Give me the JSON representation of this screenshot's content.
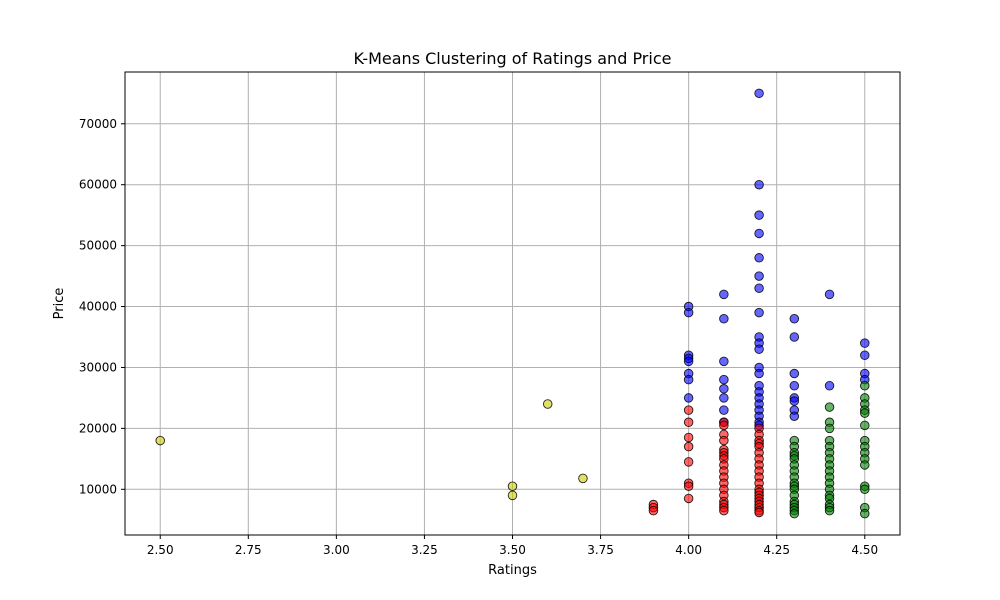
{
  "chart_data": {
    "type": "scatter",
    "title": "K-Means Clustering of Ratings and Price",
    "xlabel": "Ratings",
    "ylabel": "Price",
    "xlim": [
      2.4,
      4.6
    ],
    "ylim": [
      2500,
      78500
    ],
    "xticks": [
      "2.50",
      "2.75",
      "3.00",
      "3.25",
      "3.50",
      "3.75",
      "4.00",
      "4.25",
      "4.50"
    ],
    "xtick_values": [
      2.5,
      2.75,
      3.0,
      3.25,
      3.5,
      3.75,
      4.0,
      4.25,
      4.5
    ],
    "yticks": [
      "10000",
      "20000",
      "30000",
      "40000",
      "50000",
      "60000",
      "70000"
    ],
    "ytick_values": [
      10000,
      20000,
      30000,
      40000,
      50000,
      60000,
      70000
    ],
    "grid": true,
    "series": [
      {
        "color": "#0000ff",
        "points": [
          [
            4.0,
            40000
          ],
          [
            4.0,
            39000
          ],
          [
            4.0,
            32000
          ],
          [
            4.0,
            31500
          ],
          [
            4.0,
            31000
          ],
          [
            4.0,
            29000
          ],
          [
            4.0,
            28000
          ],
          [
            4.0,
            25000
          ],
          [
            4.1,
            42000
          ],
          [
            4.1,
            38000
          ],
          [
            4.1,
            31000
          ],
          [
            4.1,
            28000
          ],
          [
            4.1,
            26500
          ],
          [
            4.1,
            25000
          ],
          [
            4.1,
            23000
          ],
          [
            4.1,
            21000
          ],
          [
            4.2,
            75000
          ],
          [
            4.2,
            60000
          ],
          [
            4.2,
            55000
          ],
          [
            4.2,
            52000
          ],
          [
            4.2,
            48000
          ],
          [
            4.2,
            45000
          ],
          [
            4.2,
            43000
          ],
          [
            4.2,
            39000
          ],
          [
            4.2,
            35000
          ],
          [
            4.2,
            34000
          ],
          [
            4.2,
            33000
          ],
          [
            4.2,
            30000
          ],
          [
            4.2,
            29000
          ],
          [
            4.2,
            27000
          ],
          [
            4.2,
            26000
          ],
          [
            4.2,
            25000
          ],
          [
            4.2,
            24000
          ],
          [
            4.2,
            23000
          ],
          [
            4.2,
            22000
          ],
          [
            4.2,
            21000
          ],
          [
            4.2,
            20500
          ],
          [
            4.3,
            38000
          ],
          [
            4.3,
            35000
          ],
          [
            4.3,
            29000
          ],
          [
            4.3,
            27000
          ],
          [
            4.3,
            25000
          ],
          [
            4.3,
            24500
          ],
          [
            4.3,
            23000
          ],
          [
            4.3,
            22000
          ],
          [
            4.4,
            42000
          ],
          [
            4.4,
            27000
          ],
          [
            4.5,
            34000
          ],
          [
            4.5,
            32000
          ],
          [
            4.5,
            29000
          ],
          [
            4.5,
            28000
          ]
        ]
      },
      {
        "color": "#ff0000",
        "points": [
          [
            3.9,
            7500
          ],
          [
            3.9,
            7000
          ],
          [
            3.9,
            6500
          ],
          [
            4.0,
            23000
          ],
          [
            4.0,
            21000
          ],
          [
            4.0,
            18500
          ],
          [
            4.0,
            17000
          ],
          [
            4.0,
            14500
          ],
          [
            4.0,
            11000
          ],
          [
            4.0,
            10500
          ],
          [
            4.0,
            8500
          ],
          [
            4.1,
            21000
          ],
          [
            4.1,
            20500
          ],
          [
            4.1,
            19000
          ],
          [
            4.1,
            18000
          ],
          [
            4.1,
            16500
          ],
          [
            4.1,
            16000
          ],
          [
            4.1,
            15500
          ],
          [
            4.1,
            15000
          ],
          [
            4.1,
            14000
          ],
          [
            4.1,
            13000
          ],
          [
            4.1,
            12000
          ],
          [
            4.1,
            11000
          ],
          [
            4.1,
            10000
          ],
          [
            4.1,
            9000
          ],
          [
            4.1,
            8000
          ],
          [
            4.1,
            7500
          ],
          [
            4.1,
            7000
          ],
          [
            4.1,
            6500
          ],
          [
            4.2,
            20000
          ],
          [
            4.2,
            19000
          ],
          [
            4.2,
            18000
          ],
          [
            4.2,
            17500
          ],
          [
            4.2,
            17000
          ],
          [
            4.2,
            16000
          ],
          [
            4.2,
            15000
          ],
          [
            4.2,
            14000
          ],
          [
            4.2,
            13000
          ],
          [
            4.2,
            12000
          ],
          [
            4.2,
            11000
          ],
          [
            4.2,
            10000
          ],
          [
            4.2,
            9500
          ],
          [
            4.2,
            9000
          ],
          [
            4.2,
            8500
          ],
          [
            4.2,
            8000
          ],
          [
            4.2,
            7500
          ],
          [
            4.2,
            7000
          ],
          [
            4.2,
            6500
          ],
          [
            4.2,
            6200
          ]
        ]
      },
      {
        "color": "#008000",
        "points": [
          [
            4.3,
            18000
          ],
          [
            4.3,
            17000
          ],
          [
            4.3,
            16000
          ],
          [
            4.3,
            15500
          ],
          [
            4.3,
            15000
          ],
          [
            4.3,
            14000
          ],
          [
            4.3,
            13000
          ],
          [
            4.3,
            12000
          ],
          [
            4.3,
            11000
          ],
          [
            4.3,
            10500
          ],
          [
            4.3,
            10000
          ],
          [
            4.3,
            9000
          ],
          [
            4.3,
            8000
          ],
          [
            4.3,
            7500
          ],
          [
            4.3,
            7000
          ],
          [
            4.3,
            6500
          ],
          [
            4.3,
            6000
          ],
          [
            4.4,
            23500
          ],
          [
            4.4,
            21000
          ],
          [
            4.4,
            20000
          ],
          [
            4.4,
            18000
          ],
          [
            4.4,
            17000
          ],
          [
            4.4,
            16000
          ],
          [
            4.4,
            15000
          ],
          [
            4.4,
            14000
          ],
          [
            4.4,
            13000
          ],
          [
            4.4,
            12000
          ],
          [
            4.4,
            11000
          ],
          [
            4.4,
            10000
          ],
          [
            4.4,
            9000
          ],
          [
            4.4,
            8500
          ],
          [
            4.4,
            7500
          ],
          [
            4.4,
            7000
          ],
          [
            4.4,
            6500
          ],
          [
            4.5,
            27000
          ],
          [
            4.5,
            25000
          ],
          [
            4.5,
            24000
          ],
          [
            4.5,
            23000
          ],
          [
            4.5,
            22500
          ],
          [
            4.5,
            20500
          ],
          [
            4.5,
            18000
          ],
          [
            4.5,
            17000
          ],
          [
            4.5,
            16000
          ],
          [
            4.5,
            15000
          ],
          [
            4.5,
            14000
          ],
          [
            4.5,
            10500
          ],
          [
            4.5,
            10000
          ],
          [
            4.5,
            7000
          ],
          [
            4.5,
            6000
          ]
        ]
      },
      {
        "color": "#cccc00",
        "points": [
          [
            2.5,
            18000
          ],
          [
            3.5,
            10500
          ],
          [
            3.5,
            9000
          ],
          [
            3.6,
            24000
          ],
          [
            3.7,
            11800
          ]
        ]
      }
    ]
  }
}
